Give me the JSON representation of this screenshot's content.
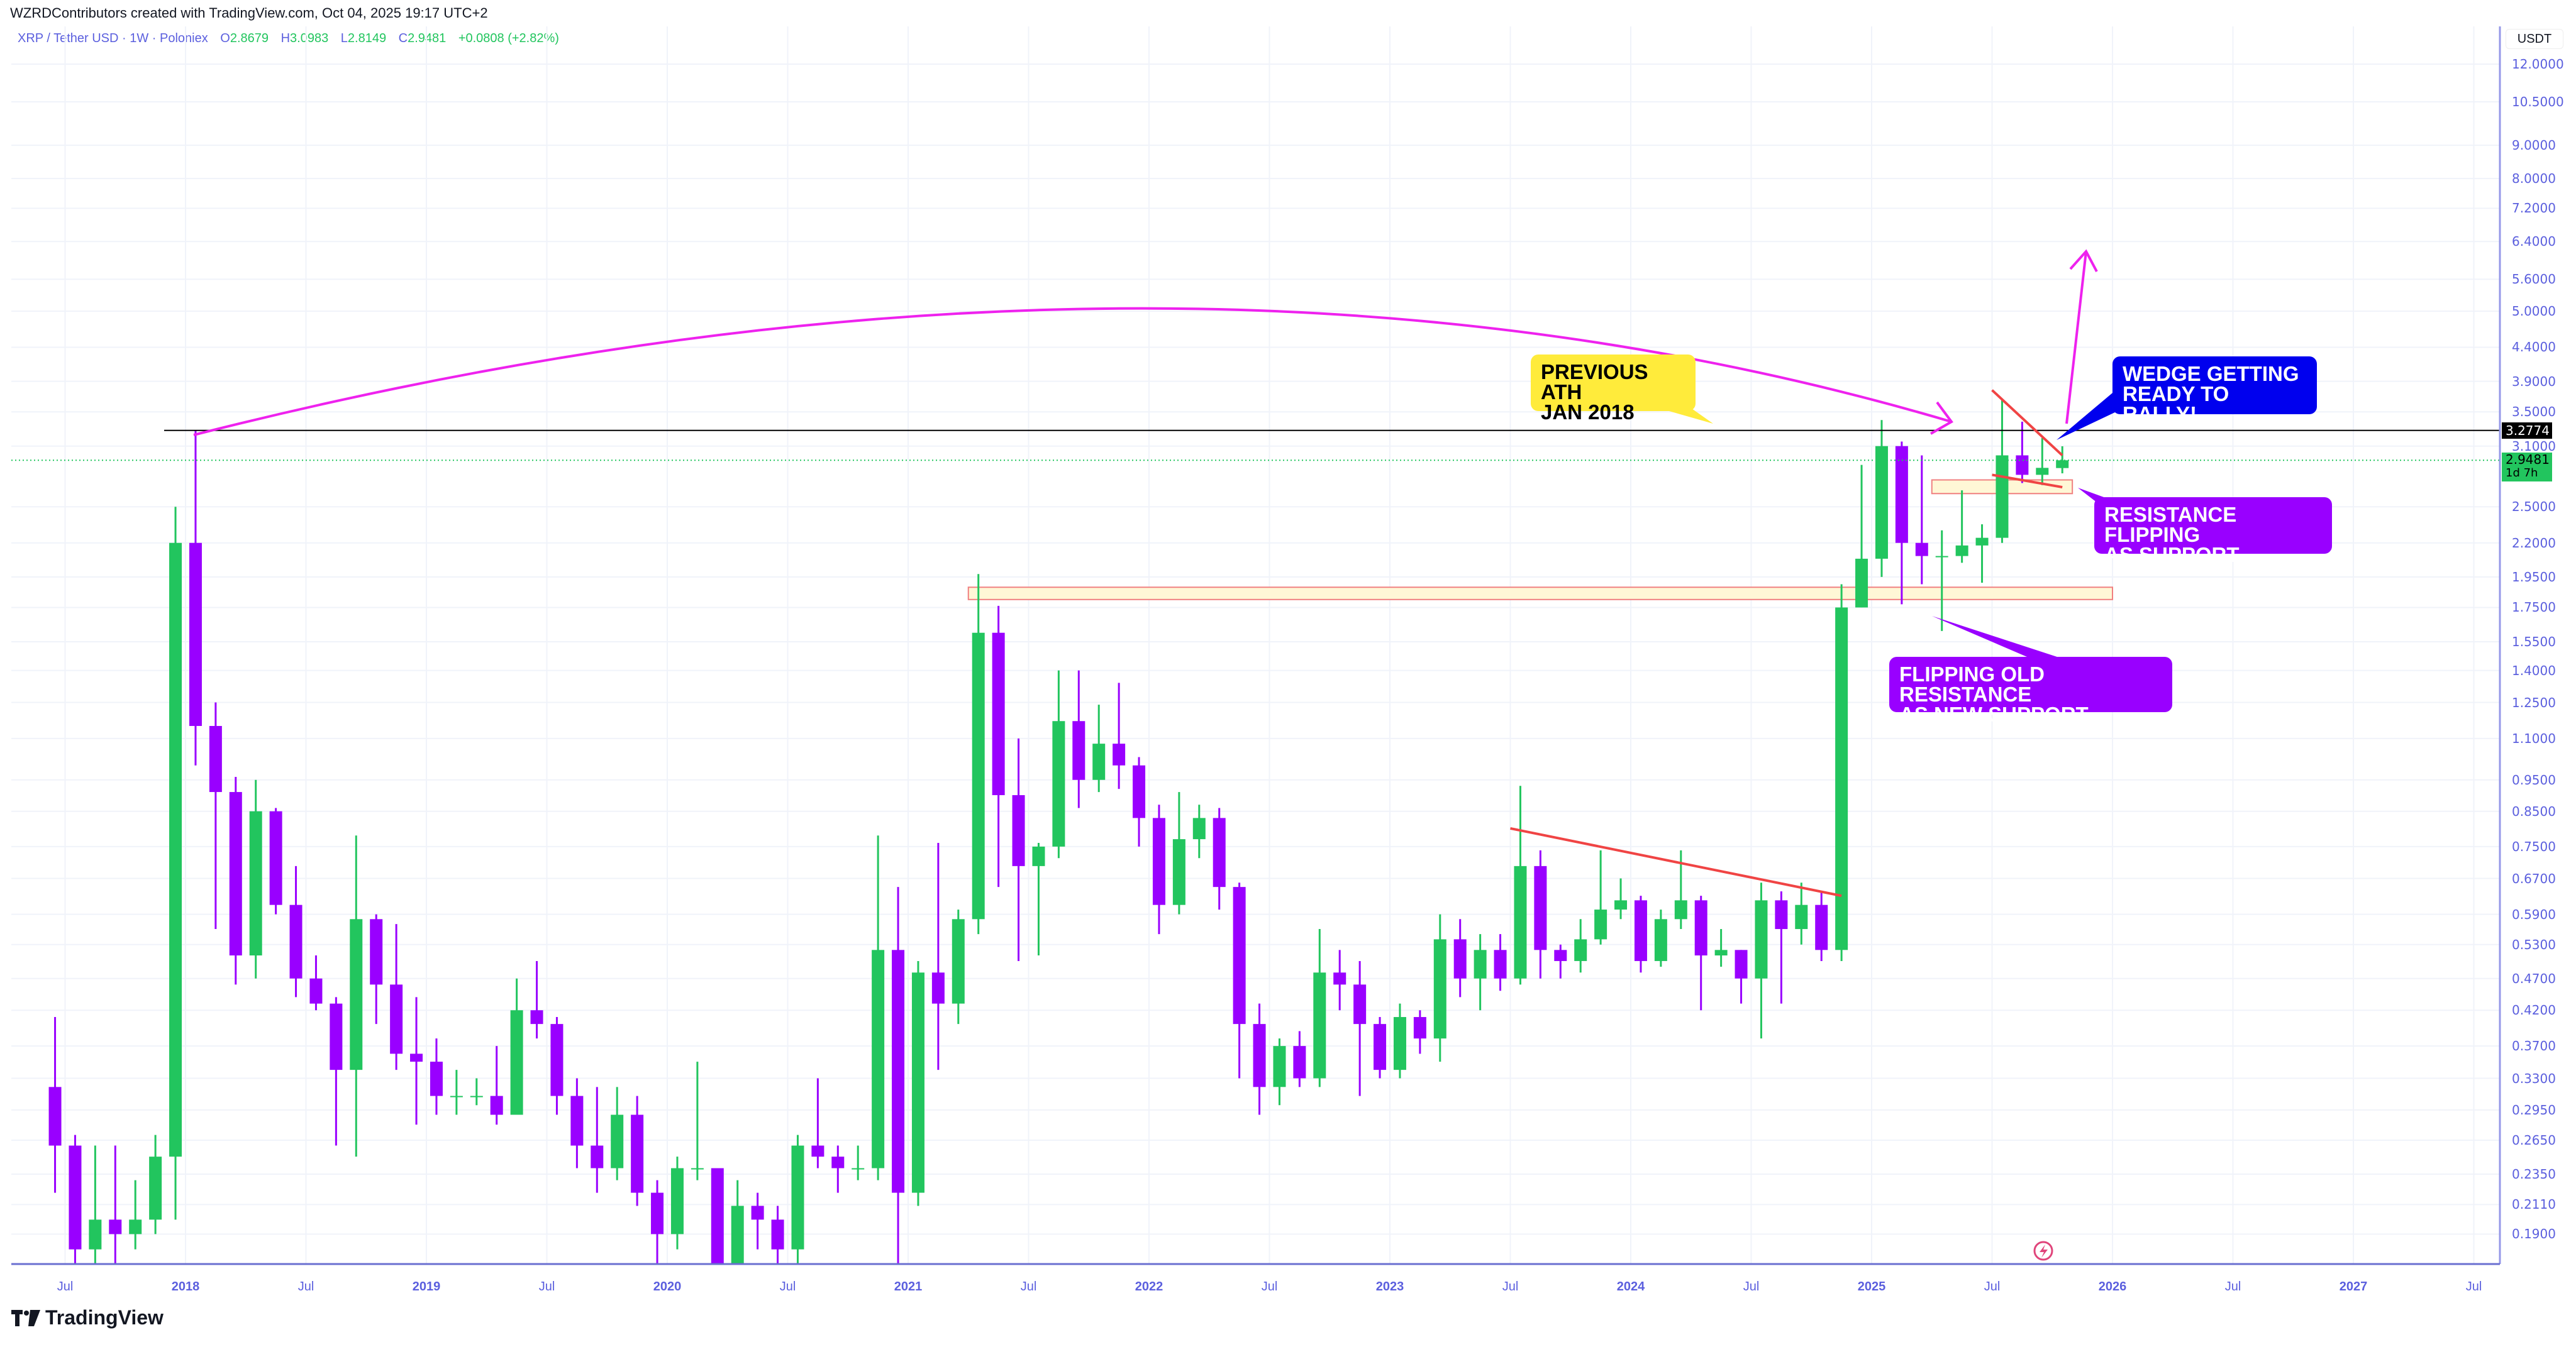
{
  "header": {
    "credit": "WZRDContributors created with TradingView.com, Oct 04, 2025 19:17 UTC+2",
    "symbol": "XRP / Tether USD · 1W · Poloniex",
    "open_label": "O",
    "open": "2.8679",
    "high_label": "H",
    "high": "3.0983",
    "low_label": "L",
    "low": "2.8149",
    "close_label": "C",
    "close": "2.9481",
    "change": "+0.0808 (+2.82%)"
  },
  "price_axis": {
    "unit": "USDT",
    "ticks": [
      "12.0000",
      "10.5000",
      "9.0000",
      "8.0000",
      "7.2000",
      "6.4000",
      "5.6000",
      "5.0000",
      "4.4000",
      "3.9000",
      "3.5000",
      "3.1000",
      "2.5000",
      "2.2000",
      "1.9500",
      "1.7500",
      "1.5500",
      "1.4000",
      "1.2500",
      "1.1000",
      "0.9500",
      "0.8500",
      "0.7500",
      "0.6700",
      "0.5900",
      "0.5300",
      "0.4700",
      "0.4200",
      "0.3700",
      "0.3300",
      "0.2950",
      "0.2650",
      "0.2350",
      "0.2110",
      "0.1900"
    ],
    "ath_label": "3.2774",
    "last_price_label": "2.9481",
    "countdown": "1d 7h"
  },
  "time_axis": {
    "ticks": [
      {
        "label": "Jul",
        "date": 2017.5,
        "major": false
      },
      {
        "label": "2018",
        "date": 2018,
        "major": true
      },
      {
        "label": "Jul",
        "date": 2018.5,
        "major": false
      },
      {
        "label": "2019",
        "date": 2019,
        "major": true
      },
      {
        "label": "Jul",
        "date": 2019.5,
        "major": false
      },
      {
        "label": "2020",
        "date": 2020,
        "major": true
      },
      {
        "label": "Jul",
        "date": 2020.5,
        "major": false
      },
      {
        "label": "2021",
        "date": 2021,
        "major": true
      },
      {
        "label": "Jul",
        "date": 2021.5,
        "major": false
      },
      {
        "label": "2022",
        "date": 2022,
        "major": true
      },
      {
        "label": "Jul",
        "date": 2022.5,
        "major": false
      },
      {
        "label": "2023",
        "date": 2023,
        "major": true
      },
      {
        "label": "Jul",
        "date": 2023.5,
        "major": false
      },
      {
        "label": "2024",
        "date": 2024,
        "major": true
      },
      {
        "label": "Jul",
        "date": 2024.5,
        "major": false
      },
      {
        "label": "2025",
        "date": 2025,
        "major": true
      },
      {
        "label": "Jul",
        "date": 2025.5,
        "major": false
      },
      {
        "label": "2026",
        "date": 2026,
        "major": true
      },
      {
        "label": "Jul",
        "date": 2026.5,
        "major": false
      },
      {
        "label": "2027",
        "date": 2027,
        "major": true
      },
      {
        "label": "Jul",
        "date": 2027.5,
        "major": false
      }
    ]
  },
  "annotations": {
    "ath": "PREVIOUS ATH\nJAN 2018",
    "wedge": "WEDGE GETTING\nREADY TO RALLY!",
    "resistance": "RESISTANCE FLIPPING\nAS SUPPORT",
    "old_resistance": "FLIPPING OLD RESISTANCE\nAS NEW SUPPORT"
  },
  "branding": {
    "logo": "TradingView"
  },
  "colors": {
    "up": "#22c55e",
    "down": "#9900ff",
    "axis_text": "#5b5fde",
    "arc": "#ee22ee",
    "trend": "#f04444",
    "zone": "#fff7d6",
    "ath_line": "#000000"
  },
  "chart_data": {
    "type": "candlestick",
    "scale": "log",
    "interval_shown": "1W",
    "ylim": [
      0.175,
      13
    ],
    "xlim": [
      "2017-05",
      "2027-09"
    ],
    "grid": true,
    "columns": [
      "month",
      "open",
      "high",
      "low",
      "close"
    ],
    "candles_monthly_approx": [
      [
        "2017-06",
        0.32,
        0.41,
        0.22,
        0.26
      ],
      [
        "2017-07",
        0.26,
        0.27,
        0.15,
        0.18
      ],
      [
        "2017-08",
        0.18,
        0.26,
        0.16,
        0.2
      ],
      [
        "2017-09",
        0.2,
        0.26,
        0.16,
        0.19
      ],
      [
        "2017-10",
        0.19,
        0.23,
        0.18,
        0.2
      ],
      [
        "2017-11",
        0.2,
        0.27,
        0.19,
        0.25
      ],
      [
        "2017-12",
        0.25,
        2.5,
        0.2,
        2.2
      ],
      [
        "2018-01",
        2.2,
        3.2774,
        1.0,
        1.15
      ],
      [
        "2018-02",
        1.15,
        1.25,
        0.56,
        0.91
      ],
      [
        "2018-03",
        0.91,
        0.96,
        0.46,
        0.51
      ],
      [
        "2018-04",
        0.51,
        0.95,
        0.47,
        0.85
      ],
      [
        "2018-05",
        0.85,
        0.86,
        0.59,
        0.61
      ],
      [
        "2018-06",
        0.61,
        0.7,
        0.44,
        0.47
      ],
      [
        "2018-07",
        0.47,
        0.51,
        0.42,
        0.43
      ],
      [
        "2018-08",
        0.43,
        0.44,
        0.26,
        0.34
      ],
      [
        "2018-09",
        0.34,
        0.78,
        0.25,
        0.58
      ],
      [
        "2018-10",
        0.58,
        0.59,
        0.4,
        0.46
      ],
      [
        "2018-11",
        0.46,
        0.57,
        0.34,
        0.36
      ],
      [
        "2018-12",
        0.36,
        0.44,
        0.28,
        0.35
      ],
      [
        "2019-01",
        0.35,
        0.38,
        0.29,
        0.31
      ],
      [
        "2019-02",
        0.31,
        0.34,
        0.29,
        0.31
      ],
      [
        "2019-03",
        0.31,
        0.33,
        0.3,
        0.31
      ],
      [
        "2019-04",
        0.31,
        0.37,
        0.28,
        0.29
      ],
      [
        "2019-05",
        0.29,
        0.47,
        0.29,
        0.42
      ],
      [
        "2019-06",
        0.42,
        0.5,
        0.38,
        0.4
      ],
      [
        "2019-07",
        0.4,
        0.41,
        0.29,
        0.31
      ],
      [
        "2019-08",
        0.31,
        0.33,
        0.24,
        0.26
      ],
      [
        "2019-09",
        0.26,
        0.32,
        0.22,
        0.24
      ],
      [
        "2019-10",
        0.24,
        0.32,
        0.23,
        0.29
      ],
      [
        "2019-11",
        0.29,
        0.31,
        0.21,
        0.22
      ],
      [
        "2019-12",
        0.22,
        0.23,
        0.17,
        0.19
      ],
      [
        "2020-01",
        0.19,
        0.25,
        0.18,
        0.24
      ],
      [
        "2020-02",
        0.24,
        0.35,
        0.23,
        0.24
      ],
      [
        "2020-03",
        0.24,
        0.24,
        0.11,
        0.17
      ],
      [
        "2020-04",
        0.17,
        0.23,
        0.17,
        0.21
      ],
      [
        "2020-05",
        0.21,
        0.22,
        0.18,
        0.2
      ],
      [
        "2020-06",
        0.2,
        0.21,
        0.17,
        0.18
      ],
      [
        "2020-07",
        0.18,
        0.27,
        0.17,
        0.26
      ],
      [
        "2020-08",
        0.26,
        0.33,
        0.24,
        0.25
      ],
      [
        "2020-09",
        0.25,
        0.26,
        0.22,
        0.24
      ],
      [
        "2020-10",
        0.24,
        0.26,
        0.23,
        0.24
      ],
      [
        "2020-11",
        0.24,
        0.78,
        0.23,
        0.52
      ],
      [
        "2020-12",
        0.52,
        0.65,
        0.17,
        0.22
      ],
      [
        "2021-01",
        0.22,
        0.5,
        0.21,
        0.48
      ],
      [
        "2021-02",
        0.48,
        0.76,
        0.34,
        0.43
      ],
      [
        "2021-03",
        0.43,
        0.6,
        0.4,
        0.58
      ],
      [
        "2021-04",
        0.58,
        1.97,
        0.55,
        1.6
      ],
      [
        "2021-05",
        1.6,
        1.76,
        0.65,
        0.9
      ],
      [
        "2021-06",
        0.9,
        1.1,
        0.5,
        0.7
      ],
      [
        "2021-07",
        0.7,
        0.76,
        0.51,
        0.75
      ],
      [
        "2021-08",
        0.75,
        1.4,
        0.72,
        1.17
      ],
      [
        "2021-09",
        1.17,
        1.4,
        0.86,
        0.95
      ],
      [
        "2021-10",
        0.95,
        1.24,
        0.91,
        1.08
      ],
      [
        "2021-11",
        1.08,
        1.34,
        0.92,
        1.0
      ],
      [
        "2021-12",
        1.0,
        1.03,
        0.75,
        0.83
      ],
      [
        "2022-01",
        0.83,
        0.87,
        0.55,
        0.61
      ],
      [
        "2022-02",
        0.61,
        0.91,
        0.59,
        0.77
      ],
      [
        "2022-03",
        0.77,
        0.87,
        0.72,
        0.83
      ],
      [
        "2022-04",
        0.83,
        0.86,
        0.6,
        0.65
      ],
      [
        "2022-05",
        0.65,
        0.66,
        0.33,
        0.4
      ],
      [
        "2022-06",
        0.4,
        0.43,
        0.29,
        0.32
      ],
      [
        "2022-07",
        0.32,
        0.38,
        0.3,
        0.37
      ],
      [
        "2022-08",
        0.37,
        0.39,
        0.32,
        0.33
      ],
      [
        "2022-09",
        0.33,
        0.56,
        0.32,
        0.48
      ],
      [
        "2022-10",
        0.48,
        0.52,
        0.42,
        0.46
      ],
      [
        "2022-11",
        0.46,
        0.5,
        0.31,
        0.4
      ],
      [
        "2022-12",
        0.4,
        0.41,
        0.33,
        0.34
      ],
      [
        "2023-01",
        0.34,
        0.43,
        0.33,
        0.41
      ],
      [
        "2023-02",
        0.41,
        0.42,
        0.36,
        0.38
      ],
      [
        "2023-03",
        0.38,
        0.59,
        0.35,
        0.54
      ],
      [
        "2023-04",
        0.54,
        0.58,
        0.44,
        0.47
      ],
      [
        "2023-05",
        0.47,
        0.55,
        0.42,
        0.52
      ],
      [
        "2023-06",
        0.52,
        0.55,
        0.45,
        0.47
      ],
      [
        "2023-07",
        0.47,
        0.93,
        0.46,
        0.7
      ],
      [
        "2023-08",
        0.7,
        0.74,
        0.47,
        0.52
      ],
      [
        "2023-09",
        0.52,
        0.53,
        0.47,
        0.5
      ],
      [
        "2023-10",
        0.5,
        0.58,
        0.48,
        0.54
      ],
      [
        "2023-11",
        0.54,
        0.74,
        0.53,
        0.6
      ],
      [
        "2023-12",
        0.6,
        0.67,
        0.58,
        0.62
      ],
      [
        "2024-01",
        0.62,
        0.63,
        0.48,
        0.5
      ],
      [
        "2024-02",
        0.5,
        0.6,
        0.49,
        0.58
      ],
      [
        "2024-03",
        0.58,
        0.74,
        0.56,
        0.62
      ],
      [
        "2024-04",
        0.62,
        0.63,
        0.42,
        0.51
      ],
      [
        "2024-05",
        0.51,
        0.56,
        0.49,
        0.52
      ],
      [
        "2024-06",
        0.52,
        0.52,
        0.43,
        0.47
      ],
      [
        "2024-07",
        0.47,
        0.66,
        0.38,
        0.62
      ],
      [
        "2024-08",
        0.62,
        0.64,
        0.43,
        0.56
      ],
      [
        "2024-09",
        0.56,
        0.66,
        0.53,
        0.61
      ],
      [
        "2024-10",
        0.61,
        0.64,
        0.5,
        0.52
      ],
      [
        "2024-11",
        0.52,
        1.9,
        0.5,
        1.75
      ],
      [
        "2024-12",
        1.75,
        2.9,
        1.75,
        2.08
      ],
      [
        "2025-01",
        2.08,
        3.4,
        1.95,
        3.1
      ],
      [
        "2025-02",
        3.1,
        3.15,
        1.77,
        2.2
      ],
      [
        "2025-03",
        2.2,
        3.0,
        1.9,
        2.1
      ],
      [
        "2025-04",
        2.1,
        2.3,
        1.61,
        2.1
      ],
      [
        "2025-05",
        2.1,
        2.65,
        2.05,
        2.18
      ],
      [
        "2025-06",
        2.18,
        2.35,
        1.91,
        2.24
      ],
      [
        "2025-07",
        2.24,
        3.66,
        2.2,
        3.0
      ],
      [
        "2025-08",
        3.0,
        3.38,
        2.72,
        2.8
      ],
      [
        "2025-09",
        2.8,
        3.19,
        2.7,
        2.87
      ],
      [
        "2025-10",
        2.8679,
        3.0983,
        2.8149,
        2.9481
      ]
    ],
    "horizontal_lines": [
      {
        "price": 3.2774,
        "from": "2018-01"
      }
    ],
    "zones": [
      {
        "from": "2021-04",
        "to": "2026-01",
        "low": 1.8,
        "high": 1.88
      },
      {
        "from": "2025-04",
        "to": "2025-11",
        "low": 2.62,
        "high": 2.75
      }
    ],
    "trendlines": [
      {
        "from": [
          "2023-07",
          0.8
        ],
        "to": [
          "2024-11",
          0.63
        ]
      },
      {
        "from": [
          "2025-07",
          3.78
        ],
        "to": [
          "2025-10",
          3.0
        ]
      },
      {
        "from": [
          "2025-07",
          2.8
        ],
        "to": [
          "2025-10",
          2.68
        ]
      }
    ]
  }
}
